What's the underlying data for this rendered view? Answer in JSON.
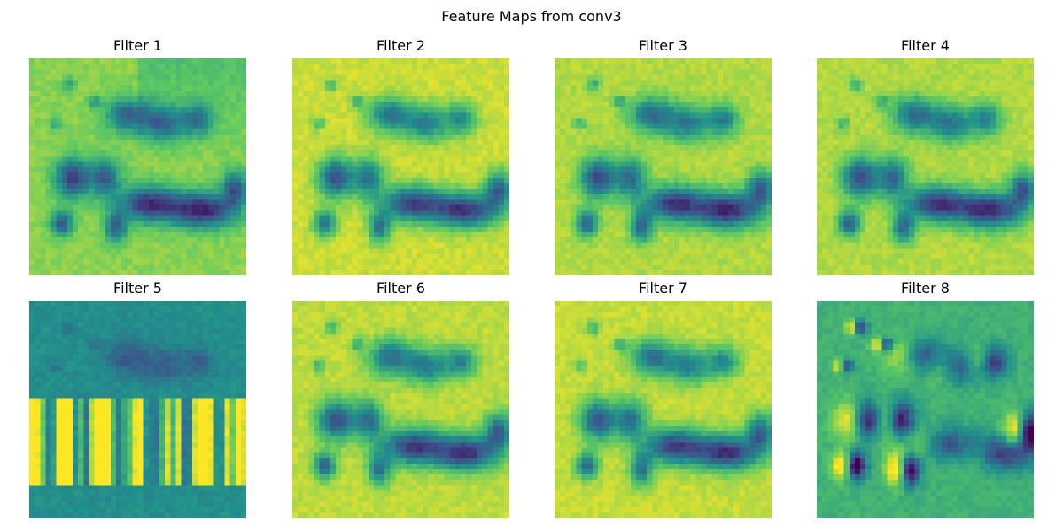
{
  "chart_data": {
    "type": "heatmap",
    "title": "Feature Maps from conv3",
    "colormap": "viridis",
    "colors": [
      "#440154",
      "#3b528b",
      "#21918c",
      "#5ec962",
      "#fde725"
    ],
    "axes_visible": false,
    "grid": false,
    "layout": "2x4",
    "panels": [
      {
        "title": "Filter 1",
        "style": "base",
        "background_level": 0.78
      },
      {
        "title": "Filter 2",
        "style": "bright",
        "background_level": 0.92
      },
      {
        "title": "Filter 3",
        "style": "bright",
        "background_level": 0.88
      },
      {
        "title": "Filter 4",
        "style": "bright",
        "background_level": 0.88
      },
      {
        "title": "Filter 5",
        "style": "texture",
        "background_level": 0.45
      },
      {
        "title": "Filter 6",
        "style": "bright",
        "background_level": 0.9
      },
      {
        "title": "Filter 7",
        "style": "bright",
        "background_level": 0.91
      },
      {
        "title": "Filter 8",
        "style": "edge",
        "background_level": 0.6
      }
    ]
  }
}
